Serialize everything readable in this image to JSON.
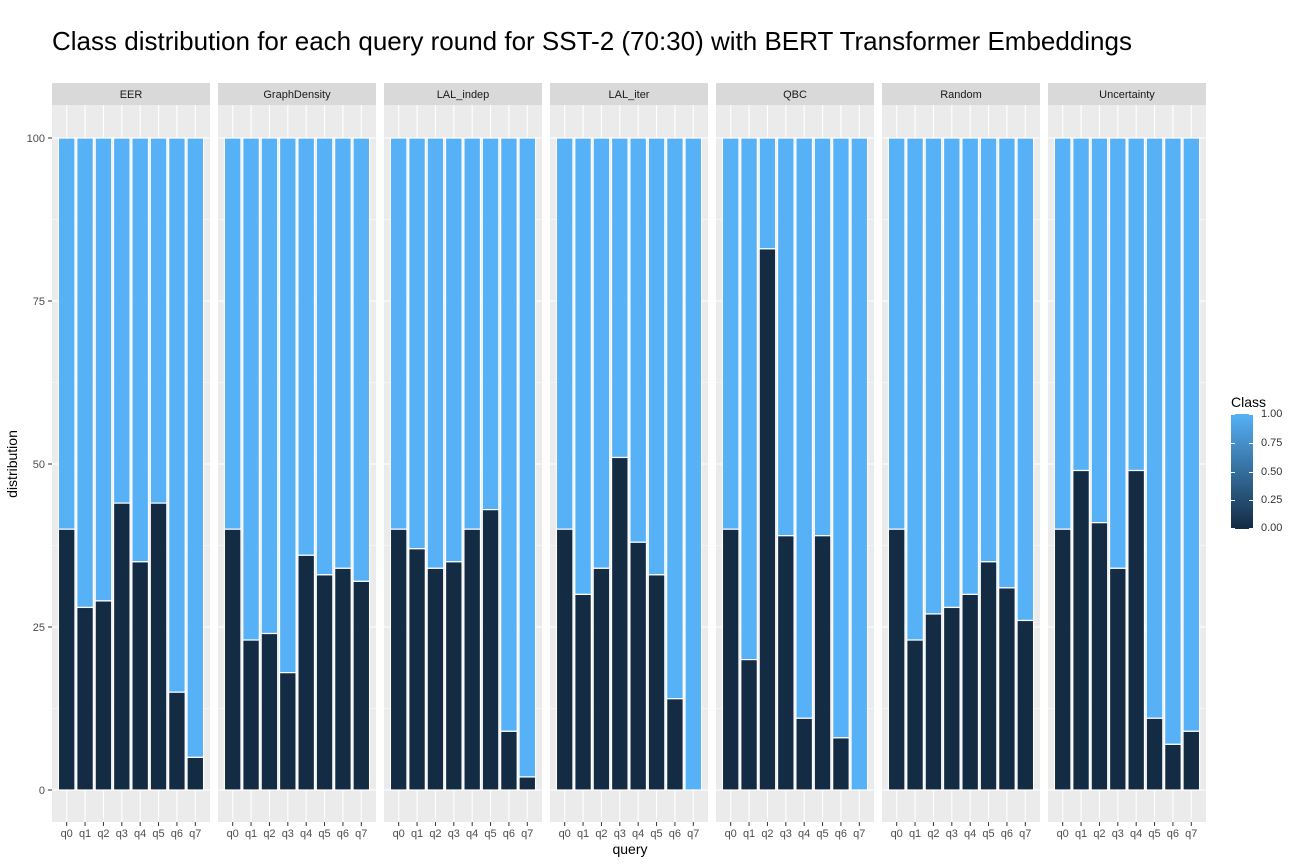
{
  "chart_data": {
    "type": "bar",
    "title": "Class distribution for each query round for SST-2 (70:30) with BERT Transformer Embeddings",
    "xlabel": "query",
    "ylabel": "distribution",
    "ylim": [
      0,
      100
    ],
    "y_ticks": [
      0,
      25,
      50,
      75,
      100
    ],
    "categories": [
      "q0",
      "q1",
      "q2",
      "q3",
      "q4",
      "q5",
      "q6",
      "q7"
    ],
    "stacked": true,
    "grid": true,
    "facets": [
      {
        "name": "EER",
        "class_0_values": [
          40,
          28,
          29,
          44,
          35,
          44,
          15,
          5
        ]
      },
      {
        "name": "GraphDensity",
        "class_0_values": [
          40,
          23,
          24,
          18,
          36,
          33,
          34,
          32
        ]
      },
      {
        "name": "LAL_indep",
        "class_0_values": [
          40,
          37,
          34,
          35,
          40,
          43,
          9,
          2
        ]
      },
      {
        "name": "LAL_iter",
        "class_0_values": [
          40,
          30,
          34,
          51,
          38,
          33,
          14,
          0
        ]
      },
      {
        "name": "QBC",
        "class_0_values": [
          40,
          20,
          83,
          39,
          11,
          39,
          8,
          0
        ]
      },
      {
        "name": "Random",
        "class_0_values": [
          40,
          23,
          27,
          28,
          30,
          35,
          31,
          26
        ]
      },
      {
        "name": "Uncertainty",
        "class_0_values": [
          40,
          49,
          41,
          34,
          49,
          11,
          7,
          9
        ]
      }
    ],
    "total": 100,
    "legend": {
      "title": "Class",
      "type": "continuous",
      "placement": "right",
      "ticks": [
        "0.00",
        "0.25",
        "0.50",
        "0.75",
        "1.00"
      ],
      "low_color": "#132b43",
      "high_color": "#56b1f7"
    },
    "colors": {
      "class_0": "#132b43",
      "class_1": "#56b1f7",
      "panel_bg": "#ebebeb",
      "strip_bg": "#d9d9d9",
      "grid": "#ffffff"
    }
  }
}
